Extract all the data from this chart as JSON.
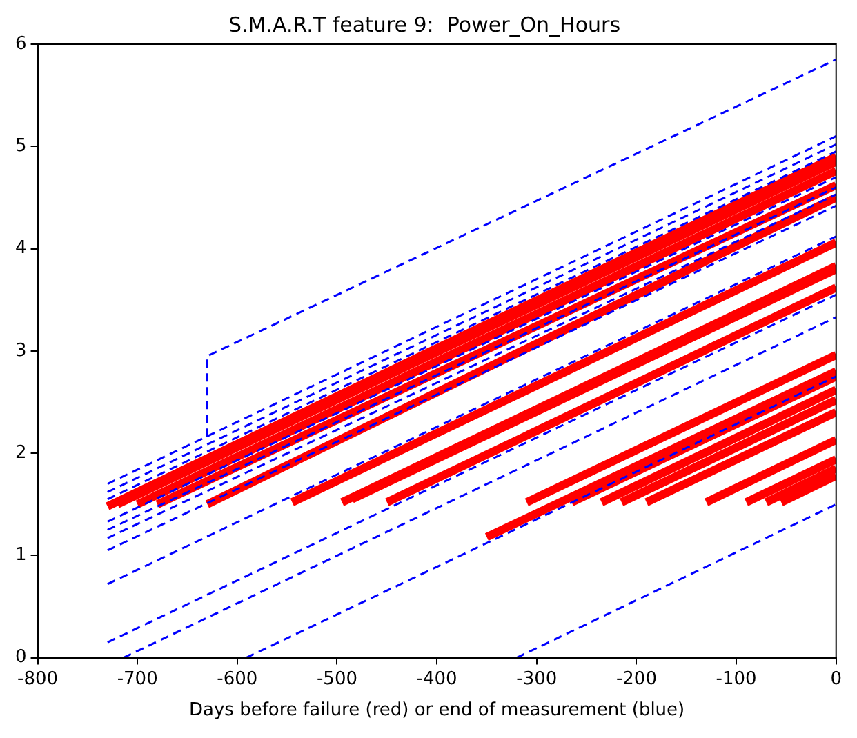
{
  "chart_data": {
    "type": "line",
    "title": "S.M.A.R.T feature 9:  Power_On_Hours",
    "xlabel": "Days before failure (red) or end of measurement (blue)",
    "xlim": [
      -800,
      0
    ],
    "xticks": [
      -800,
      -700,
      -600,
      -500,
      -400,
      -300,
      -200,
      -100,
      0
    ],
    "ylim": [
      0,
      6
    ],
    "yticks": [
      0,
      1,
      2,
      3,
      4,
      5,
      6
    ],
    "grid": false,
    "legend": false,
    "marker": "none",
    "series": [
      {
        "color": "#0000ff",
        "line_style": "dashed",
        "x": [
          -630,
          -630,
          0
        ],
        "values": [
          2.16,
          2.95,
          5.85
        ]
      },
      {
        "color": "#0000ff",
        "line_style": "dashed",
        "x": [
          -730,
          0
        ],
        "values": [
          1.7,
          5.1
        ]
      },
      {
        "color": "#0000ff",
        "line_style": "dashed",
        "x": [
          -730,
          0
        ],
        "values": [
          1.62,
          5.02
        ]
      },
      {
        "color": "#0000ff",
        "line_style": "dashed",
        "x": [
          -730,
          0
        ],
        "values": [
          1.55,
          4.95
        ]
      },
      {
        "color": "#0000ff",
        "line_style": "dashed",
        "x": [
          -730,
          0
        ],
        "values": [
          1.33,
          4.7
        ]
      },
      {
        "color": "#0000ff",
        "line_style": "dashed",
        "x": [
          -730,
          0
        ],
        "values": [
          1.25,
          4.6
        ]
      },
      {
        "color": "#0000ff",
        "line_style": "dashed",
        "x": [
          -730,
          0
        ],
        "values": [
          1.17,
          4.53
        ]
      },
      {
        "color": "#0000ff",
        "line_style": "dashed",
        "x": [
          -730,
          0
        ],
        "values": [
          1.05,
          4.42
        ]
      },
      {
        "color": "#0000ff",
        "line_style": "dashed",
        "x": [
          -730,
          0
        ],
        "values": [
          0.72,
          4.12
        ]
      },
      {
        "color": "#0000ff",
        "line_style": "dashed",
        "x": [
          -730,
          0
        ],
        "values": [
          0.15,
          3.55
        ]
      },
      {
        "color": "#0000ff",
        "line_style": "dashed",
        "x": [
          -714,
          0
        ],
        "values": [
          0,
          3.33
        ]
      },
      {
        "color": "#0000ff",
        "line_style": "dashed",
        "x": [
          -591,
          0
        ],
        "values": [
          0,
          2.75
        ]
      },
      {
        "color": "#0000ff",
        "line_style": "dashed",
        "x": [
          -320,
          0
        ],
        "values": [
          0,
          1.5
        ]
      },
      {
        "color": "#ff0000",
        "line_style": "solid",
        "x": [
          -730,
          0
        ],
        "values": [
          1.48,
          4.9
        ]
      },
      {
        "color": "#ff0000",
        "line_style": "solid",
        "x": [
          -720,
          0
        ],
        "values": [
          1.5,
          4.85
        ]
      },
      {
        "color": "#ff0000",
        "line_style": "solid",
        "x": [
          -700,
          0
        ],
        "values": [
          1.5,
          4.76
        ]
      },
      {
        "color": "#ff0000",
        "line_style": "solid",
        "x": [
          -680,
          0
        ],
        "values": [
          1.5,
          4.62
        ]
      },
      {
        "color": "#ff0000",
        "line_style": "solid",
        "x": [
          -630,
          0
        ],
        "values": [
          1.5,
          4.5
        ]
      },
      {
        "color": "#ff0000",
        "line_style": "solid",
        "x": [
          -545,
          0
        ],
        "values": [
          1.52,
          4.06
        ]
      },
      {
        "color": "#ff0000",
        "line_style": "solid",
        "x": [
          -495,
          0
        ],
        "values": [
          1.52,
          3.83
        ]
      },
      {
        "color": "#ff0000",
        "line_style": "solid",
        "x": [
          -485,
          0
        ],
        "values": [
          1.55,
          3.8
        ]
      },
      {
        "color": "#ff0000",
        "line_style": "solid",
        "x": [
          -450,
          0
        ],
        "values": [
          1.52,
          3.62
        ]
      },
      {
        "color": "#ff0000",
        "line_style": "solid",
        "x": [
          -350,
          0
        ],
        "values": [
          1.18,
          2.8
        ]
      },
      {
        "color": "#ff0000",
        "line_style": "solid",
        "x": [
          -310,
          0
        ],
        "values": [
          1.52,
          2.96
        ]
      },
      {
        "color": "#ff0000",
        "line_style": "solid",
        "x": [
          -265,
          0
        ],
        "values": [
          1.52,
          2.75
        ]
      },
      {
        "color": "#ff0000",
        "line_style": "solid",
        "x": [
          -235,
          0
        ],
        "values": [
          1.52,
          2.62
        ]
      },
      {
        "color": "#ff0000",
        "line_style": "solid",
        "x": [
          -215,
          0
        ],
        "values": [
          1.52,
          2.52
        ]
      },
      {
        "color": "#ff0000",
        "line_style": "solid",
        "x": [
          -190,
          0
        ],
        "values": [
          1.52,
          2.4
        ]
      },
      {
        "color": "#ff0000",
        "line_style": "solid",
        "x": [
          -130,
          0
        ],
        "values": [
          1.52,
          2.13
        ]
      },
      {
        "color": "#ff0000",
        "line_style": "solid",
        "x": [
          -90,
          0
        ],
        "values": [
          1.52,
          1.94
        ]
      },
      {
        "color": "#ff0000",
        "line_style": "solid",
        "x": [
          -70,
          0
        ],
        "values": [
          1.52,
          1.85
        ]
      },
      {
        "color": "#ff0000",
        "line_style": "solid",
        "x": [
          -55,
          0
        ],
        "values": [
          1.52,
          1.78
        ]
      }
    ]
  }
}
